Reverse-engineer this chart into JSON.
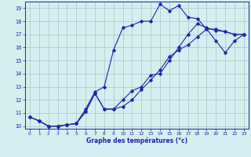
{
  "xlabel": "Graphe des températures (°c)",
  "xlim": [
    -0.5,
    23.5
  ],
  "ylim": [
    9.8,
    19.5
  ],
  "yticks": [
    10,
    11,
    12,
    13,
    14,
    15,
    16,
    17,
    18,
    19
  ],
  "xticks": [
    0,
    1,
    2,
    3,
    4,
    5,
    6,
    7,
    8,
    9,
    10,
    11,
    12,
    13,
    14,
    15,
    16,
    17,
    18,
    19,
    20,
    21,
    22,
    23
  ],
  "background_color": "#d4efef",
  "grid_color": "#aacccc",
  "line_color": "#2222aa",
  "line1_x": [
    0,
    1,
    2,
    3,
    4,
    5,
    6,
    7,
    8,
    9,
    10,
    11,
    12,
    13,
    14,
    15,
    16,
    17,
    18,
    19,
    20,
    21,
    22,
    23
  ],
  "line1_y": [
    10.7,
    10.4,
    10.0,
    10.0,
    10.1,
    10.2,
    11.3,
    12.6,
    13.0,
    15.8,
    17.5,
    17.7,
    18.0,
    18.0,
    19.3,
    18.8,
    19.2,
    18.3,
    18.2,
    17.4,
    17.4,
    17.2,
    17.0,
    17.0
  ],
  "line2_x": [
    0,
    1,
    2,
    3,
    4,
    5,
    6,
    7,
    8,
    9,
    10,
    11,
    12,
    13,
    14,
    15,
    16,
    17,
    18,
    19,
    20,
    21,
    22,
    23
  ],
  "line2_y": [
    10.7,
    10.4,
    10.0,
    10.0,
    10.1,
    10.2,
    11.1,
    12.5,
    11.3,
    11.3,
    12.0,
    12.7,
    13.0,
    13.9,
    14.0,
    15.0,
    16.0,
    17.0,
    17.8,
    17.5,
    17.3,
    17.2,
    17.0,
    17.0
  ],
  "line3_x": [
    0,
    1,
    2,
    3,
    4,
    5,
    6,
    7,
    8,
    9,
    10,
    11,
    12,
    13,
    14,
    15,
    16,
    17,
    18,
    19,
    20,
    21,
    22,
    23
  ],
  "line3_y": [
    10.7,
    10.4,
    10.0,
    10.0,
    10.1,
    10.2,
    11.1,
    12.5,
    11.3,
    11.3,
    11.5,
    12.0,
    12.8,
    13.5,
    14.3,
    15.3,
    15.8,
    16.2,
    16.8,
    17.4,
    16.5,
    15.6,
    16.5,
    17.0
  ]
}
